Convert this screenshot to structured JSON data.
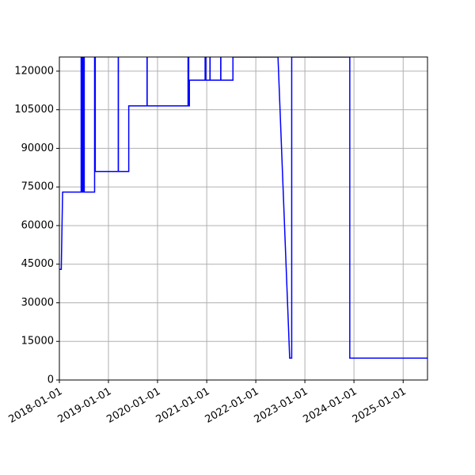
{
  "chart_data": {
    "type": "line",
    "title": "",
    "xlabel": "",
    "ylabel": "",
    "x_axis_type": "date",
    "xlim": [
      "2018-01-01",
      "2025-07-01"
    ],
    "ylim": [
      0,
      125500
    ],
    "grid": true,
    "legend": "none",
    "colors": {
      "line": "#0000ff",
      "grid": "#b0b0b0",
      "axes": "#000000"
    },
    "x_ticks": [
      {
        "value": "2018-01-01",
        "label": "2018-01-01"
      },
      {
        "value": "2019-01-01",
        "label": "2019-01-01"
      },
      {
        "value": "2020-01-01",
        "label": "2020-01-01"
      },
      {
        "value": "2021-01-01",
        "label": "2021-01-01"
      },
      {
        "value": "2022-01-01",
        "label": "2022-01-01"
      },
      {
        "value": "2023-01-01",
        "label": "2023-01-01"
      },
      {
        "value": "2024-01-01",
        "label": "2024-01-01"
      },
      {
        "value": "2025-01-01",
        "label": "2025-01-01"
      }
    ],
    "y_ticks": [
      {
        "value": 0,
        "label": "0"
      },
      {
        "value": 15000,
        "label": "15000"
      },
      {
        "value": 30000,
        "label": "30000"
      },
      {
        "value": 45000,
        "label": "45000"
      },
      {
        "value": 60000,
        "label": "60000"
      },
      {
        "value": 75000,
        "label": "75000"
      },
      {
        "value": 90000,
        "label": "90000"
      },
      {
        "value": 105000,
        "label": "105000"
      },
      {
        "value": 120000,
        "label": "120000"
      }
    ],
    "series": [
      {
        "x": [
          "2018-01-01",
          "2018-01-15",
          "2018-01-25",
          "2018-06-12",
          "2018-06-12",
          "2018-06-15",
          "2018-06-15",
          "2018-06-20",
          "2018-06-20",
          "2018-06-25",
          "2018-06-25",
          "2018-07-01",
          "2018-07-01",
          "2018-07-05",
          "2018-07-05",
          "2018-09-20",
          "2018-09-20",
          "2018-09-25",
          "2018-09-25",
          "2019-03-15",
          "2019-03-15",
          "2019-03-16",
          "2019-03-16",
          "2019-06-01",
          "2019-06-01",
          "2019-10-15",
          "2019-10-15",
          "2019-10-16",
          "2019-10-16",
          "2020-08-15",
          "2020-08-15",
          "2020-08-20",
          "2020-08-20",
          "2020-08-25",
          "2020-08-25",
          "2020-12-20",
          "2020-12-20",
          "2020-12-25",
          "2020-12-25",
          "2021-01-25",
          "2021-01-25",
          "2021-01-26",
          "2021-01-26",
          "2021-04-15",
          "2021-04-15",
          "2021-04-16",
          "2021-04-16",
          "2021-07-15",
          "2021-07-15",
          "2022-06-15",
          "2022-09-10",
          "2022-09-10",
          "2022-09-25",
          "2022-09-25",
          "2023-12-01",
          "2023-12-01",
          "2025-07-01"
        ],
        "y": [
          43000,
          43000,
          73000,
          73000,
          125500,
          125500,
          73000,
          73000,
          125500,
          125500,
          73000,
          73000,
          125500,
          125500,
          73000,
          73000,
          125500,
          125500,
          81000,
          81000,
          125500,
          125500,
          81000,
          81000,
          106500,
          106500,
          125500,
          125500,
          106500,
          106500,
          125500,
          125500,
          106500,
          106500,
          116500,
          116500,
          125500,
          125500,
          116500,
          116500,
          125500,
          125500,
          116500,
          116500,
          125500,
          125500,
          116500,
          116500,
          125500,
          125500,
          8500,
          8500,
          8500,
          125500,
          125500,
          8500,
          8500
        ]
      }
    ]
  }
}
